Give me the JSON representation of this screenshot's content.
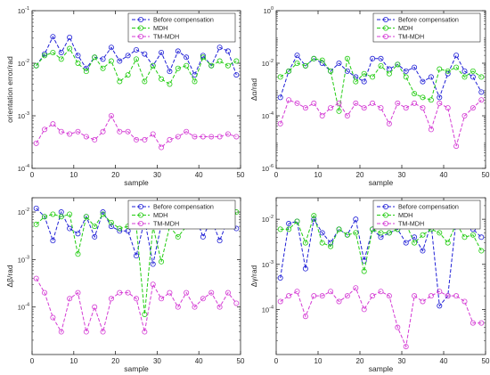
{
  "figure": {
    "line_colors": {
      "before": "#1f1fd6",
      "mdh": "#22cc11",
      "tm": "#d43bd4"
    },
    "grid": true,
    "style": "log-scale y axes, dashed lines with circle markers"
  },
  "chart_data": [
    {
      "type": "line",
      "id": "top-left",
      "xlabel": "sample",
      "ylabel": "orientation error/rad",
      "xlim": [
        0,
        50
      ],
      "ylim": [
        0.0001,
        0.1
      ],
      "yscale": "log",
      "xticks": [
        "0",
        "10",
        "20",
        "30",
        "40",
        "50"
      ],
      "yticks": [
        {
          "base": "10",
          "exp": "-4",
          "value": 0.0001
        },
        {
          "base": "10",
          "exp": "-3",
          "value": 0.001
        },
        {
          "base": "10",
          "exp": "-2",
          "value": 0.01
        },
        {
          "base": "10",
          "exp": "-1",
          "value": 0.1
        }
      ],
      "legend": "top-right",
      "x": [
        1,
        3,
        5,
        7,
        9,
        11,
        13,
        15,
        17,
        19,
        21,
        23,
        25,
        27,
        29,
        31,
        33,
        35,
        37,
        39,
        41,
        43,
        45,
        47,
        49
      ],
      "series": [
        {
          "name": "Before compensation",
          "color": "#1f1fd6",
          "values": [
            0.009,
            0.015,
            0.032,
            0.016,
            0.031,
            0.014,
            0.008,
            0.013,
            0.012,
            0.02,
            0.011,
            0.014,
            0.018,
            0.015,
            0.009,
            0.016,
            0.007,
            0.017,
            0.013,
            0.006,
            0.014,
            0.009,
            0.02,
            0.017,
            0.006
          ]
        },
        {
          "name": "MDH",
          "color": "#22cc11",
          "values": [
            0.009,
            0.014,
            0.016,
            0.012,
            0.019,
            0.01,
            0.007,
            0.013,
            0.008,
            0.011,
            0.0045,
            0.006,
            0.012,
            0.0045,
            0.009,
            0.005,
            0.004,
            0.008,
            0.009,
            0.0045,
            0.013,
            0.009,
            0.011,
            0.009,
            0.011
          ]
        },
        {
          "name": "TM-MDH",
          "color": "#d43bd4",
          "values": [
            0.0003,
            0.00055,
            0.0007,
            0.0005,
            0.00045,
            0.0005,
            0.0004,
            0.00035,
            0.0005,
            0.001,
            0.0005,
            0.0005,
            0.00035,
            0.00035,
            0.00045,
            0.00025,
            0.00035,
            0.0004,
            0.0005,
            0.0004,
            0.0004,
            0.0004,
            0.0004,
            0.00045,
            0.0004
          ]
        }
      ]
    },
    {
      "type": "line",
      "id": "top-right",
      "xlabel": "sample",
      "ylabel": "Δα/rad",
      "xlim": [
        0,
        50
      ],
      "ylim": [
        1e-06,
        1
      ],
      "yscale": "log",
      "xticks": [
        "0",
        "10",
        "20",
        "30",
        "40",
        "50"
      ],
      "yticks": [
        {
          "base": "10",
          "exp": "-6",
          "value": 1e-06
        },
        {
          "base": "10",
          "exp": "-4",
          "value": 0.0001
        },
        {
          "base": "10",
          "exp": "-2",
          "value": 0.01
        },
        {
          "base": "10",
          "exp": "0",
          "value": 1
        }
      ],
      "legend": "top-right",
      "x": [
        1,
        3,
        5,
        7,
        9,
        11,
        13,
        15,
        17,
        19,
        21,
        23,
        25,
        27,
        29,
        31,
        33,
        35,
        37,
        39,
        41,
        43,
        45,
        47,
        49
      ],
      "series": [
        {
          "name": "Before compensation",
          "color": "#1f1fd6",
          "values": [
            0.0005,
            0.005,
            0.02,
            0.008,
            0.015,
            0.01,
            0.005,
            0.01,
            0.005,
            0.003,
            0.002,
            0.015,
            0.015,
            0.006,
            0.009,
            0.005,
            0.007,
            0.002,
            0.003,
            0.0005,
            0.004,
            0.02,
            0.005,
            0.003,
            0.0008
          ]
        },
        {
          "name": "MDH",
          "color": "#22cc11",
          "values": [
            0.003,
            0.005,
            0.01,
            0.008,
            0.015,
            0.013,
            0.005,
            0.00015,
            0.015,
            0.002,
            0.004,
            0.003,
            0.008,
            0.004,
            0.009,
            0.003,
            0.0007,
            0.0005,
            0.0004,
            0.006,
            0.005,
            0.007,
            0.003,
            0.005,
            0.003
          ]
        },
        {
          "name": "TM-MDH",
          "color": "#d43bd4",
          "values": [
            5e-05,
            0.0004,
            0.0003,
            0.0002,
            0.0003,
            0.0001,
            0.0002,
            0.0003,
            0.0001,
            0.0003,
            0.0002,
            0.0003,
            0.0002,
            5e-05,
            0.0003,
            0.0002,
            0.0003,
            0.0002,
            3e-05,
            0.0003,
            0.0002,
            7e-06,
            0.0001,
            0.0002,
            0.0004
          ]
        }
      ]
    },
    {
      "type": "line",
      "id": "bottom-left",
      "xlabel": "sample",
      "ylabel": "Δβ/rad",
      "xlim": [
        0,
        50
      ],
      "ylim": [
        1e-05,
        0.02
      ],
      "yscale": "log",
      "xticks": [
        "0",
        "10",
        "20",
        "30",
        "40",
        "50"
      ],
      "yticks": [
        {
          "base": "10",
          "exp": "-4",
          "value": 0.0001
        },
        {
          "base": "10",
          "exp": "-3",
          "value": 0.001
        },
        {
          "base": "10",
          "exp": "-2",
          "value": 0.01
        }
      ],
      "legend": "top-right",
      "x": [
        1,
        3,
        5,
        7,
        9,
        11,
        13,
        15,
        17,
        19,
        21,
        23,
        25,
        27,
        29,
        31,
        33,
        35,
        37,
        39,
        41,
        43,
        45,
        47,
        49
      ],
      "series": [
        {
          "name": "Before compensation",
          "color": "#1f1fd6",
          "values": [
            0.012,
            0.008,
            0.0025,
            0.01,
            0.0045,
            0.0035,
            0.008,
            0.003,
            0.01,
            0.005,
            0.004,
            0.004,
            0.0012,
            0.007,
            0.0008,
            0.0055,
            0.008,
            0.007,
            0.005,
            0.009,
            0.003,
            0.007,
            0.0025,
            0.007,
            0.0045
          ]
        },
        {
          "name": "MDH",
          "color": "#22cc11",
          "values": [
            0.0055,
            0.008,
            0.009,
            0.008,
            0.009,
            0.0013,
            0.008,
            0.005,
            0.009,
            0.006,
            0.0045,
            0.005,
            0.005,
            7e-05,
            0.005,
            0.0009,
            0.005,
            0.003,
            0.005,
            0.006,
            0.005,
            0.006,
            0.008,
            0.005,
            0.01
          ]
        },
        {
          "name": "TM-MDH",
          "color": "#d43bd4",
          "values": [
            0.0004,
            0.0002,
            6e-05,
            3e-05,
            0.00015,
            0.0002,
            3e-05,
            0.0001,
            3e-05,
            0.00015,
            0.0002,
            0.0002,
            0.00015,
            3e-05,
            0.0003,
            0.00015,
            0.0002,
            0.0001,
            0.0002,
            0.0001,
            0.00015,
            0.0002,
            0.0001,
            0.0002,
            0.00012
          ]
        }
      ]
    },
    {
      "type": "line",
      "id": "bottom-right",
      "xlabel": "sample",
      "ylabel": "Δγ/rad",
      "xlim": [
        0,
        50
      ],
      "ylim": [
        1e-05,
        0.03
      ],
      "yscale": "log",
      "xticks": [
        "0",
        "10",
        "20",
        "30",
        "40",
        "50"
      ],
      "yticks": [
        {
          "base": "10",
          "exp": "-4",
          "value": 0.0001
        },
        {
          "base": "10",
          "exp": "-3",
          "value": 0.001
        },
        {
          "base": "10",
          "exp": "-2",
          "value": 0.01
        }
      ],
      "legend": "top-right",
      "x": [
        1,
        3,
        5,
        7,
        9,
        11,
        13,
        15,
        17,
        19,
        21,
        23,
        25,
        27,
        29,
        31,
        33,
        35,
        37,
        39,
        41,
        43,
        45,
        47,
        49
      ],
      "series": [
        {
          "name": "Before compensation",
          "color": "#1f1fd6",
          "values": [
            0.0005,
            0.008,
            0.009,
            0.0008,
            0.01,
            0.005,
            0.003,
            0.006,
            0.0045,
            0.01,
            0.0012,
            0.006,
            0.004,
            0.005,
            0.006,
            0.003,
            0.004,
            0.002,
            0.008,
            0.00012,
            0.0002,
            0.01,
            0.008,
            0.006,
            0.004
          ]
        },
        {
          "name": "MDH",
          "color": "#22cc11",
          "values": [
            0.006,
            0.006,
            0.009,
            0.003,
            0.012,
            0.003,
            0.0025,
            0.006,
            0.0045,
            0.005,
            0.0007,
            0.006,
            0.005,
            0.005,
            0.006,
            0.008,
            0.003,
            0.0045,
            0.006,
            0.005,
            0.003,
            0.008,
            0.004,
            0.0045,
            0.002
          ]
        },
        {
          "name": "TM-MDH",
          "color": "#d43bd4",
          "values": [
            0.00015,
            0.0002,
            0.00025,
            7e-05,
            0.0002,
            0.0002,
            0.00025,
            0.00015,
            0.0002,
            0.0003,
            0.0001,
            0.0002,
            0.00025,
            0.0002,
            4e-05,
            1.5e-05,
            0.0002,
            0.00015,
            0.0002,
            0.00025,
            0.0002,
            0.0002,
            0.00015,
            5e-05,
            5e-05
          ]
        }
      ]
    }
  ]
}
